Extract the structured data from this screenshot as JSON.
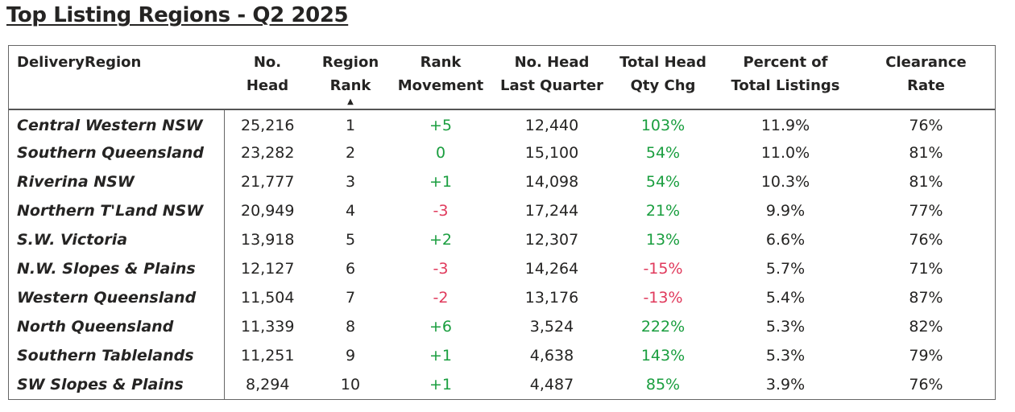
{
  "title": "Top Listing Regions - Q2 2025",
  "colors": {
    "positive": "#1a9e3f",
    "negative": "#e03a5c",
    "text": "#252423",
    "border": "#666666"
  },
  "chart_data": {
    "type": "table",
    "title": "Top Listing Regions - Q2 2025",
    "sorted_by": "Region Rank",
    "sort_direction": "ascending",
    "columns": [
      "DeliveryRegion",
      "No.\nHead",
      "Region\nRank",
      "Rank\nMovement",
      "No. Head\nLast Quarter",
      "Total Head\nQty Chg",
      "Percent of\nTotal Listings",
      "Clearance\nRate"
    ],
    "rows": [
      {
        "region": "Central Western NSW",
        "head": "25,216",
        "rank": "1",
        "movement": "+5",
        "last_quarter": "12,440",
        "qty_chg": "103%",
        "pct_total": "11.9%",
        "clearance": "76%"
      },
      {
        "region": "Southern Queensland",
        "head": "23,282",
        "rank": "2",
        "movement": "0",
        "last_quarter": "15,100",
        "qty_chg": "54%",
        "pct_total": "11.0%",
        "clearance": "81%"
      },
      {
        "region": "Riverina NSW",
        "head": "21,777",
        "rank": "3",
        "movement": "+1",
        "last_quarter": "14,098",
        "qty_chg": "54%",
        "pct_total": "10.3%",
        "clearance": "81%"
      },
      {
        "region": "Northern T'Land NSW",
        "head": "20,949",
        "rank": "4",
        "movement": "-3",
        "last_quarter": "17,244",
        "qty_chg": "21%",
        "pct_total": "9.9%",
        "clearance": "77%"
      },
      {
        "region": "S.W. Victoria",
        "head": "13,918",
        "rank": "5",
        "movement": "+2",
        "last_quarter": "12,307",
        "qty_chg": "13%",
        "pct_total": "6.6%",
        "clearance": "76%"
      },
      {
        "region": "N.W. Slopes & Plains",
        "head": "12,127",
        "rank": "6",
        "movement": "-3",
        "last_quarter": "14,264",
        "qty_chg": "-15%",
        "pct_total": "5.7%",
        "clearance": "71%"
      },
      {
        "region": "Western Queensland",
        "head": "11,504",
        "rank": "7",
        "movement": "-2",
        "last_quarter": "13,176",
        "qty_chg": "-13%",
        "pct_total": "5.4%",
        "clearance": "87%"
      },
      {
        "region": "North Queensland",
        "head": "11,339",
        "rank": "8",
        "movement": "+6",
        "last_quarter": "3,524",
        "qty_chg": "222%",
        "pct_total": "5.3%",
        "clearance": "82%"
      },
      {
        "region": "Southern Tablelands",
        "head": "11,251",
        "rank": "9",
        "movement": "+1",
        "last_quarter": "4,638",
        "qty_chg": "143%",
        "pct_total": "5.3%",
        "clearance": "79%"
      },
      {
        "region": "SW Slopes & Plains",
        "head": "8,294",
        "rank": "10",
        "movement": "+1",
        "last_quarter": "4,487",
        "qty_chg": "85%",
        "pct_total": "3.9%",
        "clearance": "76%"
      }
    ]
  }
}
